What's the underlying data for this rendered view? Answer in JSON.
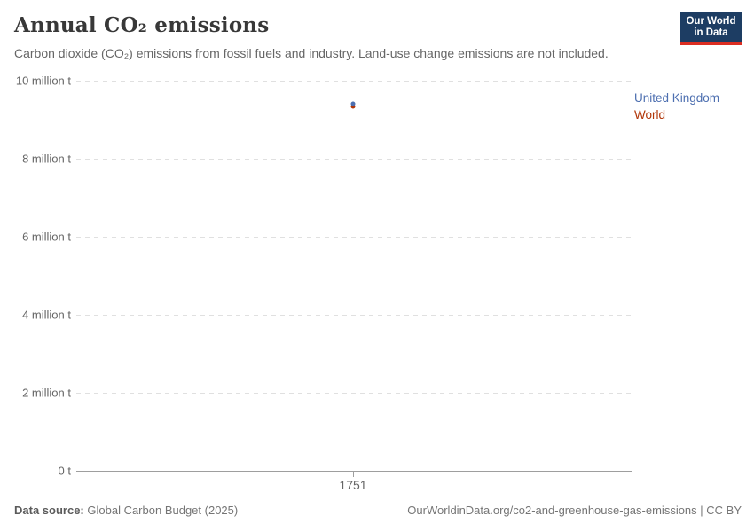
{
  "header": {
    "title": "Annual CO₂ emissions",
    "subtitle": "Carbon dioxide (CO₂) emissions from fossil fuels and industry. Land-use change emissions are not included.",
    "logo": {
      "line1": "Our World",
      "line2": "in Data",
      "bg_color": "#1d3d63",
      "accent_color": "#dc2e22"
    }
  },
  "chart_data": {
    "type": "scatter",
    "title": "Annual CO₂ emissions",
    "xlabel": "",
    "ylabel": "",
    "x": [
      1751
    ],
    "xtick_labels": [
      "1751"
    ],
    "ytick_labels": [
      "0 t",
      "2 million t",
      "4 million t",
      "6 million t",
      "8 million t",
      "10 million t"
    ],
    "ytick_values": [
      0,
      2000000,
      4000000,
      6000000,
      8000000,
      10000000
    ],
    "ylim": [
      0,
      10000000
    ],
    "unit": "t",
    "grid": true,
    "legend_position": "right",
    "series": [
      {
        "name": "United Kingdom",
        "color": "#4d6fb0",
        "values": [
          9400000
        ]
      },
      {
        "name": "World",
        "color": "#b13507",
        "values": [
          9350000
        ]
      }
    ]
  },
  "footer": {
    "source_label": "Data source:",
    "source_value": "Global Carbon Budget (2025)",
    "rights": "OurWorldinData.org/co2-and-greenhouse-gas-emissions | CC BY"
  }
}
